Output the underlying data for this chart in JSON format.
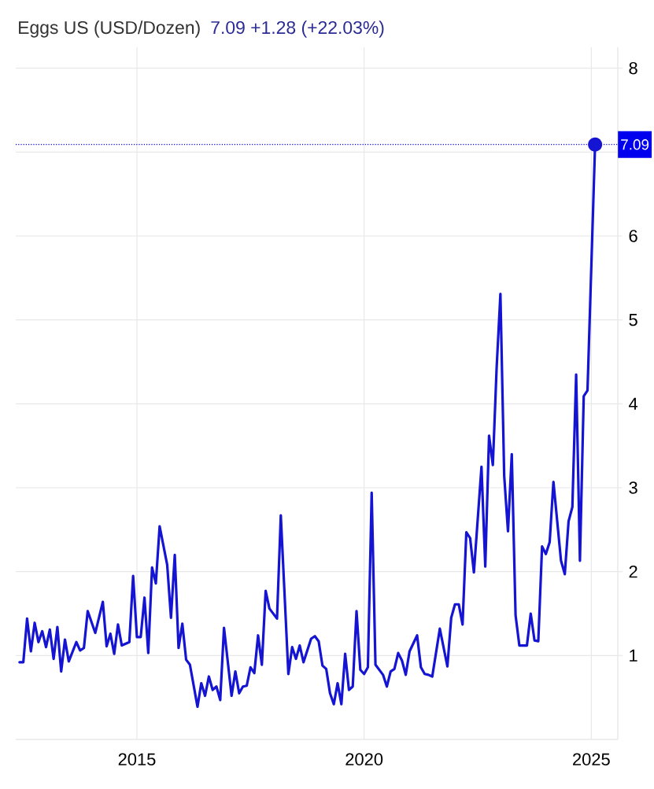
{
  "chart_data": {
    "type": "line",
    "title": "Eggs US (USD/Dozen)",
    "subtitle": "7.09  +1.28 (+22.03%)",
    "x": [
      "2012-06",
      "2012-07",
      "2012-08",
      "2012-09",
      "2012-10",
      "2012-11",
      "2012-12",
      "2013-01",
      "2013-02",
      "2013-03",
      "2013-04",
      "2013-05",
      "2013-06",
      "2013-07",
      "2013-09",
      "2013-10",
      "2013-11",
      "2013-12",
      "2014-02",
      "2014-04",
      "2014-05",
      "2014-06",
      "2014-07",
      "2014-08",
      "2014-09",
      "2014-11",
      "2014-12",
      "2015-01",
      "2015-02",
      "2015-03",
      "2015-04",
      "2015-05",
      "2015-06",
      "2015-07",
      "2015-09",
      "2015-10",
      "2015-11",
      "2015-12",
      "2016-01",
      "2016-02",
      "2016-03",
      "2016-05",
      "2016-06",
      "2016-07",
      "2016-08",
      "2016-09",
      "2016-10",
      "2016-11",
      "2016-12",
      "2017-02",
      "2017-03",
      "2017-04",
      "2017-05",
      "2017-06",
      "2017-07",
      "2017-08",
      "2017-09",
      "2017-10",
      "2017-11",
      "2017-12",
      "2018-02",
      "2018-03",
      "2018-05",
      "2018-06",
      "2018-07",
      "2018-08",
      "2018-09",
      "2018-11",
      "2018-12",
      "2019-01",
      "2019-02",
      "2019-03",
      "2019-04",
      "2019-05",
      "2019-06",
      "2019-07",
      "2019-08",
      "2019-09",
      "2019-10",
      "2019-11",
      "2019-12",
      "2020-01",
      "2020-02",
      "2020-03",
      "2020-04",
      "2020-06",
      "2020-07",
      "2020-08",
      "2020-09",
      "2020-10",
      "2020-11",
      "2020-12",
      "2021-01",
      "2021-03",
      "2021-04",
      "2021-05",
      "2021-06",
      "2021-07",
      "2021-09",
      "2021-11",
      "2021-12",
      "2022-01",
      "2022-02",
      "2022-03",
      "2022-04",
      "2022-05",
      "2022-06",
      "2022-08",
      "2022-09",
      "2022-10",
      "2022-11",
      "2022-12",
      "2023-01",
      "2023-02",
      "2023-03",
      "2023-04",
      "2023-05",
      "2023-06",
      "2023-08",
      "2023-09",
      "2023-10",
      "2023-11",
      "2023-12",
      "2024-01",
      "2024-02",
      "2024-03",
      "2024-05",
      "2024-06",
      "2024-07",
      "2024-08",
      "2024-09",
      "2024-10",
      "2024-11",
      "2024-12",
      "2025-02"
    ],
    "values": [
      0.92,
      0.92,
      1.44,
      1.05,
      1.39,
      1.16,
      1.29,
      1.1,
      1.31,
      0.96,
      1.34,
      0.81,
      1.19,
      0.93,
      1.16,
      1.06,
      1.09,
      1.53,
      1.27,
      1.64,
      1.11,
      1.26,
      1.02,
      1.37,
      1.12,
      1.16,
      1.95,
      1.22,
      1.22,
      1.69,
      1.03,
      2.05,
      1.86,
      2.54,
      2.08,
      1.45,
      2.2,
      1.09,
      1.38,
      0.95,
      0.89,
      0.39,
      0.67,
      0.52,
      0.75,
      0.59,
      0.63,
      0.47,
      1.33,
      0.52,
      0.81,
      0.55,
      0.63,
      0.64,
      0.86,
      0.79,
      1.24,
      0.89,
      1.77,
      1.56,
      1.44,
      2.67,
      0.78,
      1.1,
      0.96,
      1.12,
      0.92,
      1.2,
      1.23,
      1.17,
      0.88,
      0.84,
      0.55,
      0.42,
      0.67,
      0.42,
      1.02,
      0.59,
      0.63,
      1.53,
      0.83,
      0.78,
      0.86,
      2.94,
      0.89,
      0.77,
      0.63,
      0.81,
      0.84,
      1.03,
      0.94,
      0.77,
      1.05,
      1.24,
      0.86,
      0.78,
      0.77,
      0.75,
      1.32,
      0.87,
      1.45,
      1.61,
      1.61,
      1.37,
      2.47,
      2.4,
      1.99,
      3.25,
      2.06,
      3.62,
      3.27,
      4.43,
      5.31,
      3.14,
      2.48,
      3.4,
      1.48,
      1.12,
      1.12,
      1.5,
      1.18,
      1.17,
      2.3,
      2.21,
      2.35,
      3.07,
      2.13,
      1.97,
      2.6,
      2.77,
      4.35,
      2.13,
      4.09,
      4.16,
      7.09
    ],
    "color": "#1414d2",
    "xlim": [
      "2012-05",
      "2025-08"
    ],
    "xticks": [
      "2015",
      "2020",
      "2025"
    ],
    "ylim": [
      0,
      8.25
    ],
    "yticks": [
      1,
      2,
      3,
      4,
      5,
      6,
      {
        "value": 7,
        "label": null
      },
      8
    ],
    "grid": true,
    "ref_lines": [
      {
        "axis": "y",
        "value": 7.09,
        "label": "7.09",
        "color": "#0000ee",
        "line_style": "dotted"
      }
    ]
  }
}
